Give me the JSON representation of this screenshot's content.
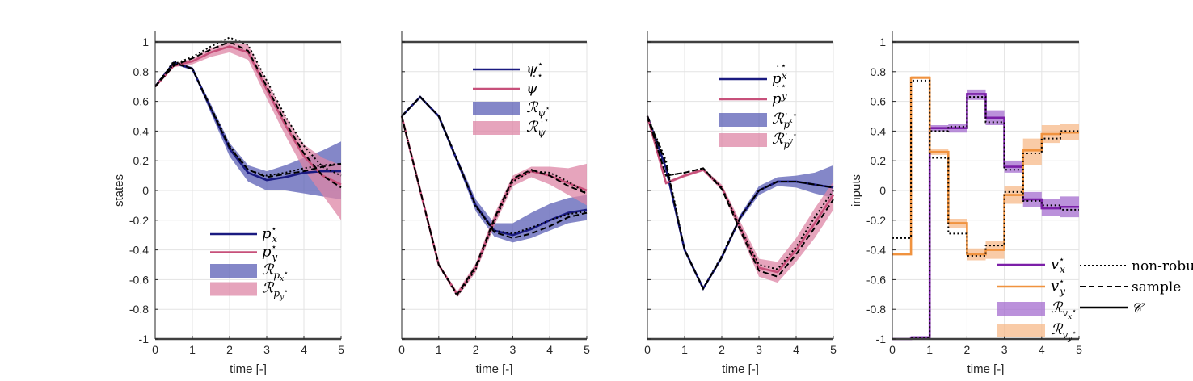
{
  "chart_data": [
    {
      "type": "line",
      "ylabel": "states",
      "xlabel": "time [-]",
      "xlim": [
        0,
        5
      ],
      "ylim": [
        -1,
        1
      ],
      "xticks": [
        0,
        1,
        2,
        3,
        4,
        5
      ],
      "yticks": [
        -1,
        -0.8,
        -0.6,
        -0.4,
        -0.2,
        0,
        0.2,
        0.4,
        0.6,
        0.8,
        1
      ],
      "ytick_labels": [
        "-1",
        "-0.8",
        "-0.6",
        "-0.4",
        "-0.2",
        "0",
        "0.2",
        "0.4",
        "0.6",
        "0.8",
        "1"
      ],
      "grid": true,
      "legend_position": "bottom-center",
      "legend": [
        "p_x*",
        "p_y*",
        "R_{p_x*}",
        "R_{p_y*}"
      ],
      "series": [
        {
          "name": "p_x* (robust)",
          "color": "#1a1a80",
          "x": [
            0,
            0.5,
            1,
            1.5,
            2,
            2.5,
            3,
            3.5,
            4,
            4.5,
            5
          ],
          "values": [
            0.7,
            0.86,
            0.82,
            0.55,
            0.28,
            0.12,
            0.07,
            0.09,
            0.12,
            0.13,
            0.13
          ]
        },
        {
          "name": "p_y* (robust)",
          "color": "#c7507a",
          "x": [
            0,
            0.5,
            1,
            1.5,
            2,
            2.5,
            3,
            3.5,
            4,
            4.5,
            5
          ],
          "values": [
            0.7,
            0.84,
            0.87,
            0.93,
            0.97,
            0.93,
            0.68,
            0.44,
            0.23,
            0.1,
            0.04
          ]
        },
        {
          "name": "p_x non-robust",
          "style": "dotted",
          "x": [
            0,
            0.5,
            1,
            1.5,
            2,
            2.5,
            3,
            3.5,
            4,
            4.5,
            5
          ],
          "values": [
            0.7,
            0.87,
            0.82,
            0.56,
            0.3,
            0.14,
            0.1,
            0.12,
            0.15,
            0.17,
            0.18
          ]
        },
        {
          "name": "p_y non-robust",
          "style": "dotted",
          "x": [
            0,
            0.5,
            1,
            1.5,
            2,
            2.5,
            3,
            3.5,
            4,
            4.5,
            5
          ],
          "values": [
            0.7,
            0.85,
            0.9,
            0.97,
            1.03,
            0.98,
            0.74,
            0.5,
            0.3,
            0.16,
            0.1
          ]
        },
        {
          "name": "p_x sample",
          "style": "dashed",
          "x": [
            0,
            0.5,
            1,
            1.5,
            2,
            2.5,
            3,
            3.5,
            4,
            4.5,
            5
          ],
          "values": [
            0.7,
            0.86,
            0.82,
            0.55,
            0.29,
            0.14,
            0.09,
            0.11,
            0.13,
            0.16,
            0.18
          ]
        },
        {
          "name": "p_y sample",
          "style": "dashed",
          "x": [
            0,
            0.5,
            1,
            1.5,
            2,
            2.5,
            3,
            3.5,
            4,
            4.5,
            5
          ],
          "values": [
            0.7,
            0.84,
            0.89,
            0.95,
            1.0,
            0.94,
            0.7,
            0.46,
            0.25,
            0.1,
            0.02
          ]
        }
      ],
      "bands": [
        {
          "name": "R_{p_x*}",
          "color": "#5b5fb5",
          "x": [
            0,
            0.5,
            1,
            1.5,
            2,
            2.5,
            3,
            3.5,
            4,
            4.5,
            5
          ],
          "lower": [
            0.7,
            0.85,
            0.81,
            0.52,
            0.23,
            0.06,
            0.0,
            0.0,
            -0.02,
            -0.04,
            -0.06
          ],
          "upper": [
            0.7,
            0.87,
            0.83,
            0.58,
            0.32,
            0.17,
            0.13,
            0.17,
            0.22,
            0.27,
            0.33
          ]
        },
        {
          "name": "R_{p_y*}",
          "color": "#de86a6",
          "x": [
            0,
            0.5,
            1,
            1.5,
            2,
            2.5,
            3,
            3.5,
            4,
            4.5,
            5
          ],
          "lower": [
            0.7,
            0.83,
            0.85,
            0.9,
            0.93,
            0.88,
            0.62,
            0.37,
            0.14,
            -0.03,
            -0.2
          ],
          "upper": [
            0.7,
            0.85,
            0.89,
            0.96,
            1.0,
            0.98,
            0.74,
            0.5,
            0.31,
            0.22,
            0.17
          ]
        }
      ],
      "reference_line": {
        "y": 1
      }
    },
    {
      "type": "line",
      "xlabel": "time [-]",
      "xlim": [
        0,
        5
      ],
      "ylim": [
        -1,
        1
      ],
      "xticks": [
        0,
        1,
        2,
        3,
        4,
        5
      ],
      "grid": true,
      "legend_position": "top-center",
      "legend": [
        "psi*",
        "psi-dot*",
        "R_{psi*}",
        "R_{psi-dot*}"
      ],
      "series": [
        {
          "name": "psi* (robust)",
          "color": "#1a1a80",
          "x": [
            0,
            0.5,
            1,
            1.5,
            2,
            2.5,
            3,
            3.5,
            4,
            4.5,
            5
          ],
          "values": [
            0.5,
            0.63,
            0.5,
            0.2,
            -0.1,
            -0.27,
            -0.3,
            -0.26,
            -0.2,
            -0.15,
            -0.13
          ]
        },
        {
          "name": "psi-dot* (robust)",
          "color": "#c7507a",
          "x": [
            0,
            0.5,
            1,
            1.5,
            2,
            2.5,
            3,
            3.5,
            4,
            4.5,
            5
          ],
          "values": [
            0.5,
            0.0,
            -0.5,
            -0.7,
            -0.52,
            -0.2,
            0.07,
            0.13,
            0.1,
            0.05,
            0.0
          ]
        },
        {
          "name": "psi non-robust",
          "style": "dotted",
          "x": [
            0,
            0.5,
            1,
            1.5,
            2,
            2.5,
            3,
            3.5,
            4,
            4.5,
            5
          ],
          "values": [
            0.5,
            0.63,
            0.5,
            0.21,
            -0.11,
            -0.27,
            -0.29,
            -0.25,
            -0.2,
            -0.16,
            -0.14
          ]
        },
        {
          "name": "psi-dot non-robust",
          "style": "dotted",
          "x": [
            0,
            0.5,
            1,
            1.5,
            2,
            2.5,
            3,
            3.5,
            4,
            4.5,
            5
          ],
          "values": [
            0.5,
            0.0,
            -0.5,
            -0.71,
            -0.53,
            -0.21,
            0.06,
            0.13,
            0.12,
            0.06,
            -0.02
          ]
        },
        {
          "name": "psi sample",
          "style": "dashed",
          "x": [
            0,
            0.5,
            1,
            1.5,
            2,
            2.5,
            3,
            3.5,
            4,
            4.5,
            5
          ],
          "values": [
            0.5,
            0.63,
            0.5,
            0.2,
            -0.1,
            -0.28,
            -0.32,
            -0.29,
            -0.24,
            -0.18,
            -0.15
          ]
        },
        {
          "name": "psi-dot sample",
          "style": "dashed",
          "x": [
            0,
            0.5,
            1,
            1.5,
            2,
            2.5,
            3,
            3.5,
            4,
            4.5,
            5
          ],
          "values": [
            0.5,
            0.0,
            -0.5,
            -0.7,
            -0.51,
            -0.19,
            0.08,
            0.14,
            0.1,
            0.03,
            -0.02
          ]
        }
      ],
      "bands": [
        {
          "name": "R_{psi*}",
          "color": "#5b5fb5",
          "x": [
            0,
            0.5,
            1,
            1.5,
            2,
            2.5,
            3,
            3.5,
            4,
            4.5,
            5
          ],
          "lower": [
            0.5,
            0.62,
            0.49,
            0.18,
            -0.14,
            -0.31,
            -0.35,
            -0.32,
            -0.27,
            -0.22,
            -0.2
          ],
          "upper": [
            0.5,
            0.64,
            0.51,
            0.22,
            -0.06,
            -0.22,
            -0.22,
            -0.15,
            -0.09,
            -0.05,
            -0.03
          ]
        },
        {
          "name": "R_{psi-dot*}",
          "color": "#de86a6",
          "x": [
            0,
            0.5,
            1,
            1.5,
            2,
            2.5,
            3,
            3.5,
            4,
            4.5,
            5
          ],
          "lower": [
            0.5,
            -0.01,
            -0.51,
            -0.72,
            -0.55,
            -0.24,
            0.03,
            0.09,
            0.04,
            -0.03,
            -0.1
          ],
          "upper": [
            0.5,
            0.01,
            -0.49,
            -0.68,
            -0.49,
            -0.16,
            0.1,
            0.16,
            0.16,
            0.15,
            0.18
          ]
        }
      ],
      "reference_line": {
        "y": 1
      }
    },
    {
      "type": "line",
      "xlabel": "time [-]",
      "xlim": [
        0,
        5
      ],
      "ylim": [
        -1,
        1
      ],
      "xticks": [
        0,
        1,
        2,
        3,
        4,
        5
      ],
      "grid": true,
      "legend_position": "top-center",
      "legend": [
        "p-dot_x*",
        "p-dot_y*",
        "R_{p-dot_x*}",
        "R_{p-dot_y*}"
      ],
      "series": [
        {
          "name": "p-dot_x* (robust)",
          "color": "#1a1a80",
          "x": [
            0,
            0.5,
            1,
            1.5,
            2,
            2.5,
            3,
            3.5,
            4,
            4.5,
            5
          ],
          "values": [
            0.5,
            0.15,
            -0.4,
            -0.66,
            -0.45,
            -0.18,
            0.0,
            0.06,
            0.06,
            0.04,
            0.02
          ]
        },
        {
          "name": "p-dot_y* (robust)",
          "color": "#c7507a",
          "x": [
            0,
            0.5,
            1,
            1.5,
            2,
            2.5,
            3,
            3.5,
            4,
            4.5,
            5
          ],
          "values": [
            0.5,
            0.05,
            0.1,
            0.14,
            0.02,
            -0.25,
            -0.52,
            -0.55,
            -0.4,
            -0.22,
            -0.03
          ]
        },
        {
          "name": "p-dot_x non-robust",
          "style": "dotted",
          "x": [
            0,
            0.5,
            1,
            1.5,
            2,
            2.5,
            3,
            3.5,
            4,
            4.5,
            5
          ],
          "values": [
            0.5,
            0.2,
            -0.4,
            -0.66,
            -0.44,
            -0.18,
            0.0,
            0.06,
            0.06,
            0.04,
            0.02
          ]
        },
        {
          "name": "p-dot_y non-robust",
          "style": "dotted",
          "x": [
            0,
            0.5,
            1,
            1.5,
            2,
            2.5,
            3,
            3.5,
            4,
            4.5,
            5
          ],
          "values": [
            0.5,
            0.1,
            0.12,
            0.15,
            0.02,
            -0.25,
            -0.5,
            -0.53,
            -0.38,
            -0.18,
            0.0
          ]
        },
        {
          "name": "p-dot_x sample",
          "style": "dashed",
          "x": [
            0,
            0.5,
            1,
            1.5,
            2,
            2.5,
            3,
            3.5,
            4,
            4.5,
            5
          ],
          "values": [
            0.5,
            0.18,
            -0.4,
            -0.66,
            -0.45,
            -0.18,
            0.0,
            0.06,
            0.06,
            0.04,
            0.02
          ]
        },
        {
          "name": "p-dot_y sample",
          "style": "dashed",
          "x": [
            0,
            0.5,
            1,
            1.5,
            2,
            2.5,
            3,
            3.5,
            4,
            4.5,
            5
          ],
          "values": [
            0.5,
            0.1,
            0.12,
            0.15,
            0.01,
            -0.27,
            -0.54,
            -0.58,
            -0.43,
            -0.25,
            -0.06
          ]
        }
      ],
      "bands": [
        {
          "name": "R_{p-dot_x*}",
          "color": "#5b5fb5",
          "x": [
            0,
            0.5,
            1,
            1.5,
            2,
            2.5,
            3,
            3.5,
            4,
            4.5,
            5
          ],
          "lower": [
            0.5,
            0.14,
            -0.41,
            -0.67,
            -0.46,
            -0.2,
            -0.03,
            0.03,
            0.02,
            -0.02,
            -0.05
          ],
          "upper": [
            0.5,
            0.16,
            -0.39,
            -0.65,
            -0.44,
            -0.16,
            0.03,
            0.09,
            0.1,
            0.12,
            0.17
          ]
        },
        {
          "name": "R_{p-dot_y*}",
          "color": "#de86a6",
          "x": [
            0,
            0.5,
            1,
            1.5,
            2,
            2.5,
            3,
            3.5,
            4,
            4.5,
            5
          ],
          "lower": [
            0.5,
            0.04,
            0.09,
            0.13,
            0.0,
            -0.29,
            -0.58,
            -0.62,
            -0.48,
            -0.32,
            -0.13
          ],
          "upper": [
            0.5,
            0.06,
            0.11,
            0.15,
            0.04,
            -0.21,
            -0.46,
            -0.48,
            -0.32,
            -0.12,
            0.06
          ]
        }
      ],
      "reference_line": {
        "y": 1
      }
    },
    {
      "type": "line",
      "step": true,
      "ylabel": "inputs",
      "xlabel": "time [-]",
      "xlim": [
        0,
        5
      ],
      "ylim": [
        -1,
        1
      ],
      "xticks": [
        0,
        1,
        2,
        3,
        4,
        5
      ],
      "yticks": [
        -1,
        -0.8,
        -0.6,
        -0.4,
        -0.2,
        0,
        0.2,
        0.4,
        0.6,
        0.8,
        1
      ],
      "ytick_labels": [
        "-1",
        "-0.8",
        "-0.6",
        "-0.4",
        "-0.2",
        "0",
        "0.2",
        "0.4",
        "0.6",
        "0.8",
        "1"
      ],
      "grid": true,
      "legend_position": "bottom-right",
      "legend": [
        "v_x*",
        "v_y*",
        "R_{v_x*}",
        "R_{v_y*}"
      ],
      "steps_start": [
        0,
        0.5,
        1,
        1.5,
        2,
        2.5,
        3,
        3.5,
        4,
        4.5
      ],
      "series": [
        {
          "name": "v_x* (robust)",
          "color": "#7b1fa8",
          "values": [
            -1.0,
            -0.99,
            0.42,
            0.42,
            0.65,
            0.49,
            0.16,
            -0.06,
            -0.12,
            -0.11
          ]
        },
        {
          "name": "v_y* (robust)",
          "color": "#f0923e",
          "values": [
            -0.43,
            0.76,
            0.26,
            -0.22,
            -0.43,
            -0.4,
            -0.03,
            0.27,
            0.38,
            0.39
          ]
        },
        {
          "name": "v_x non-robust",
          "style": "dotted",
          "values": [
            -1.0,
            -0.99,
            0.4,
            0.43,
            0.63,
            0.46,
            0.14,
            -0.07,
            -0.1,
            -0.13
          ]
        },
        {
          "name": "v_y non-robust",
          "style": "dotted",
          "values": [
            -0.32,
            0.74,
            0.22,
            -0.29,
            -0.44,
            -0.37,
            -0.01,
            0.25,
            0.35,
            0.4
          ]
        }
      ],
      "bands": [
        {
          "name": "R_{v_x*}",
          "color": "#a46ccf",
          "lower": [
            -1.0,
            -1.0,
            0.4,
            0.39,
            0.61,
            0.44,
            0.12,
            -0.11,
            -0.17,
            -0.18
          ],
          "upper": [
            -1.0,
            -0.98,
            0.44,
            0.45,
            0.68,
            0.54,
            0.2,
            -0.01,
            -0.06,
            -0.04
          ]
        },
        {
          "name": "R_{v_y*}",
          "color": "#f7b98a",
          "lower": [
            -0.43,
            0.75,
            0.24,
            -0.25,
            -0.47,
            -0.46,
            -0.09,
            0.17,
            0.32,
            0.34
          ],
          "upper": [
            -0.43,
            0.77,
            0.28,
            -0.19,
            -0.39,
            -0.34,
            0.03,
            0.35,
            0.44,
            0.45
          ]
        }
      ],
      "reference_line": {
        "y": 1
      }
    }
  ],
  "figure_legend": {
    "entries": [
      {
        "label": "non-robust",
        "style": "dotted"
      },
      {
        "label": "sample",
        "style": "dashed"
      },
      {
        "label": "C",
        "style": "solid"
      }
    ]
  }
}
